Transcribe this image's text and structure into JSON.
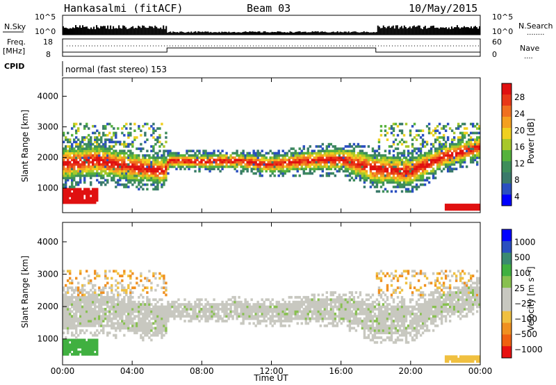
{
  "header": {
    "radar": "Hankasalmi (fitACF)",
    "beam": "Beam 03",
    "date": "10/May/2015"
  },
  "noise_panel": {
    "left_label": "N.Sky",
    "right_label": "N.Search",
    "right_legend": "........",
    "yticks_left": [
      "10^5",
      "10^0"
    ],
    "yticks_right": [
      "10^5",
      "10^0"
    ]
  },
  "freq_panel": {
    "left_label_1": "Freq.",
    "left_label_2": "[MHz]",
    "right_label": "Nave",
    "right_legend": "....",
    "yticks_left": [
      "18",
      "8"
    ],
    "yticks_right": [
      "60",
      "0"
    ]
  },
  "cpid": {
    "label": "CPID",
    "text": "normal (fast stereo) 153"
  },
  "colors": {
    "power": [
      "#0000ff",
      "#2a4fc0",
      "#3a7a6a",
      "#3e8e5a",
      "#55b23c",
      "#a8c82a",
      "#f0d020",
      "#f5a020",
      "#f07020",
      "#e83818",
      "#e01010"
    ],
    "velocity": [
      "#e81010",
      "#f06010",
      "#f09020",
      "#f0c040",
      "#c8c8c0",
      "#c8c8c0",
      "#88c050",
      "#40b040",
      "#3a8a70",
      "#2a4fc0",
      "#0000ff"
    ]
  },
  "chart_data": [
    {
      "type": "heatmap",
      "name": "power",
      "ylabel": "Slant Range [km]",
      "ylim": [
        200,
        4600
      ],
      "yticks": [
        "4000",
        "3000",
        "2000",
        "1000"
      ],
      "xlim": [
        0,
        24
      ],
      "colorbar_label": "Power [dB]",
      "colorbar_ticks": [
        "28",
        "24",
        "20",
        "16",
        "12",
        "8",
        "4"
      ],
      "colorbar_range": [
        0,
        32
      ],
      "echo_band": [
        {
          "t": 0.0,
          "lower": 1300,
          "upper": 2300
        },
        {
          "t": 2.0,
          "lower": 1400,
          "upper": 2400
        },
        {
          "t": 4.0,
          "lower": 1250,
          "upper": 2150
        },
        {
          "t": 5.9,
          "lower": 1150,
          "upper": 2000
        },
        {
          "t": 6.1,
          "lower": 1700,
          "upper": 2100
        },
        {
          "t": 8.0,
          "lower": 1650,
          "upper": 2100
        },
        {
          "t": 10.0,
          "lower": 1650,
          "upper": 2150
        },
        {
          "t": 12.0,
          "lower": 1500,
          "upper": 2050
        },
        {
          "t": 14.0,
          "lower": 1600,
          "upper": 2200
        },
        {
          "t": 16.0,
          "lower": 1600,
          "upper": 2300
        },
        {
          "t": 18.0,
          "lower": 1150,
          "upper": 2100
        },
        {
          "t": 20.0,
          "lower": 1100,
          "upper": 2000
        },
        {
          "t": 22.0,
          "lower": 1700,
          "upper": 2400
        },
        {
          "t": 24.0,
          "lower": 2000,
          "upper": 2700
        }
      ]
    },
    {
      "type": "heatmap",
      "name": "velocity",
      "ylabel": "Slant Range [km]",
      "xlabel": "Time UT",
      "ylim": [
        200,
        4600
      ],
      "yticks": [
        "4000",
        "3000",
        "2000",
        "1000"
      ],
      "xlim": [
        0,
        24
      ],
      "xticks": [
        "00:00",
        "04:00",
        "08:00",
        "12:00",
        "16:00",
        "20:00",
        "00:00"
      ],
      "colorbar_label": "Velocity [m s⁻¹]",
      "colorbar_ticks": [
        "1000",
        "500",
        "100",
        "25",
        "−25",
        "−100",
        "−500",
        "−1000"
      ]
    }
  ]
}
